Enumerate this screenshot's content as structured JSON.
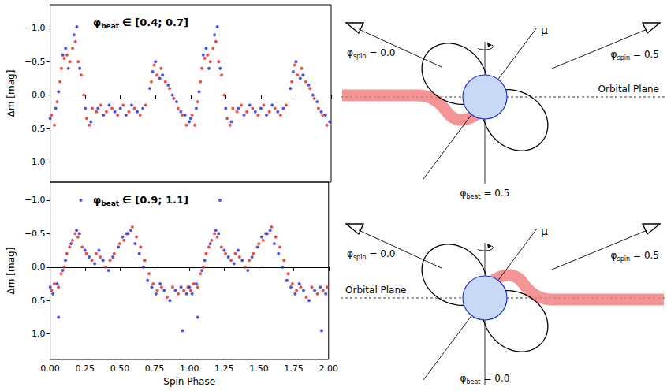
{
  "chart_data": [
    {
      "type": "scatter",
      "annotation": {
        "symbol": "φ",
        "subscript": "beat",
        "text": "∈ [0.4; 0.7]"
      },
      "y_label": "Δm [mag]",
      "xlim": [
        0,
        2
      ],
      "xticks": [
        {
          "value": 0,
          "label": "0.00"
        },
        {
          "value": 0.25,
          "label": "0.25"
        },
        {
          "value": 0.5,
          "label": "0.50"
        },
        {
          "value": 0.75,
          "label": "0.75"
        },
        {
          "value": 1,
          "label": "1.00"
        },
        {
          "value": 1.25,
          "label": "1.25"
        },
        {
          "value": 1.5,
          "label": "1.50"
        },
        {
          "value": 1.75,
          "label": "1.75"
        },
        {
          "value": 2,
          "label": "2.00"
        }
      ],
      "ylim": [
        1.3,
        -1.35
      ],
      "yticks": [
        {
          "value": -1,
          "label": "−1.0"
        },
        {
          "value": -0.5,
          "label": "−0.5"
        },
        {
          "value": 0,
          "label": "0.0"
        },
        {
          "value": 0.5,
          "label": "0.5"
        },
        {
          "value": 1,
          "label": "1.0"
        }
      ],
      "tick_labels": "y",
      "grid": false,
      "series": [
        {
          "color": "#e8231c",
          "marker": "circle",
          "x": [
            0.01,
            0.03,
            0.05,
            0.07,
            0.08,
            0.1,
            0.12,
            0.14,
            0.16,
            0.18,
            0.2,
            0.22,
            0.24,
            0.26,
            0.28,
            0.3,
            0.33,
            0.36,
            0.4,
            0.44,
            0.48,
            0.52,
            0.56,
            0.6,
            0.64,
            0.68,
            0.72,
            0.74,
            0.76,
            0.79,
            0.82,
            0.85,
            0.88,
            0.91,
            0.94,
            0.97,
            1.01,
            1.03,
            1.05,
            1.07,
            1.08,
            1.1,
            1.12,
            1.14,
            1.16,
            1.18,
            1.2,
            1.22,
            1.24,
            1.26,
            1.28,
            1.3,
            1.33,
            1.36,
            1.4,
            1.44,
            1.48,
            1.52,
            1.56,
            1.6,
            1.64,
            1.68,
            1.72,
            1.74,
            1.76,
            1.79,
            1.82,
            1.85,
            1.88,
            1.91,
            1.94,
            1.97
          ],
          "values": [
            0.3,
            0.45,
            0.1,
            -0.2,
            -0.4,
            -0.55,
            -0.6,
            -0.5,
            -0.7,
            -0.8,
            -0.5,
            -0.3,
            0.0,
            0.35,
            0.45,
            0.2,
            0.25,
            0.15,
            0.25,
            0.2,
            0.3,
            0.15,
            0.25,
            0.2,
            0.3,
            0.15,
            -0.2,
            -0.45,
            -0.3,
            -0.4,
            -0.2,
            -0.1,
            0.05,
            0.2,
            0.3,
            0.45,
            0.3,
            0.45,
            0.1,
            -0.2,
            -0.4,
            -0.55,
            -0.6,
            -0.5,
            -0.7,
            -0.8,
            -0.5,
            -0.3,
            0.0,
            0.35,
            0.45,
            0.2,
            0.25,
            0.15,
            0.25,
            0.2,
            0.3,
            0.15,
            0.25,
            0.2,
            0.3,
            0.15,
            -0.2,
            -0.45,
            -0.3,
            -0.4,
            -0.2,
            -0.1,
            0.05,
            0.2,
            0.3,
            0.45
          ]
        },
        {
          "color": "#1f2be0",
          "marker": "circle",
          "x": [
            0.0,
            0.04,
            0.06,
            0.09,
            0.11,
            0.13,
            0.17,
            0.19,
            0.21,
            0.25,
            0.29,
            0.34,
            0.38,
            0.42,
            0.46,
            0.5,
            0.54,
            0.58,
            0.62,
            0.66,
            0.71,
            0.73,
            0.75,
            0.78,
            0.8,
            0.84,
            0.87,
            0.9,
            0.93,
            0.96,
            0.99,
            1.0,
            1.04,
            1.06,
            1.09,
            1.11,
            1.13,
            1.17,
            1.19,
            1.21,
            1.25,
            1.29,
            1.34,
            1.38,
            1.42,
            1.46,
            1.5,
            1.54,
            1.58,
            1.62,
            1.66,
            1.71,
            1.73,
            1.75,
            1.78,
            1.8,
            1.84,
            1.87,
            1.9,
            1.93,
            1.96,
            1.99
          ],
          "values": [
            0.35,
            0.2,
            -0.05,
            -0.6,
            -0.7,
            -0.4,
            -0.9,
            -1.02,
            -0.4,
            0.2,
            0.4,
            0.2,
            0.3,
            0.15,
            0.25,
            0.2,
            0.3,
            0.15,
            0.25,
            0.2,
            -0.1,
            -0.35,
            -0.5,
            -0.25,
            -0.3,
            -0.15,
            0.0,
            0.1,
            0.25,
            0.3,
            0.4,
            0.35,
            0.2,
            -0.05,
            -0.6,
            -0.7,
            -0.4,
            -0.9,
            -1.02,
            -0.4,
            0.2,
            0.4,
            0.2,
            0.3,
            0.15,
            0.25,
            0.2,
            0.3,
            0.15,
            0.25,
            0.2,
            -0.1,
            -0.35,
            -0.5,
            -0.25,
            -0.3,
            -0.15,
            0.0,
            0.1,
            0.25,
            0.3,
            0.4
          ]
        }
      ]
    },
    {
      "type": "scatter",
      "annotation": {
        "symbol": "φ",
        "subscript": "beat",
        "text": "∈ [0.9; 1.1]"
      },
      "x_label": "Spin Phase",
      "y_label": "Δm [mag]",
      "xlim": [
        0,
        2
      ],
      "xticks": [
        {
          "value": 0,
          "label": "0.00"
        },
        {
          "value": 0.25,
          "label": "0.25"
        },
        {
          "value": 0.5,
          "label": "0.50"
        },
        {
          "value": 0.75,
          "label": "0.75"
        },
        {
          "value": 1,
          "label": "1.00"
        },
        {
          "value": 1.25,
          "label": "1.25"
        },
        {
          "value": 1.5,
          "label": "1.50"
        },
        {
          "value": 1.75,
          "label": "1.75"
        },
        {
          "value": 2,
          "label": "2.00"
        }
      ],
      "ylim": [
        1.38,
        -1.27
      ],
      "yticks": [
        {
          "value": -1,
          "label": "−1.0"
        },
        {
          "value": -0.5,
          "label": "−0.5"
        },
        {
          "value": 0,
          "label": "0.0"
        },
        {
          "value": 0.5,
          "label": "0.5"
        },
        {
          "value": 1,
          "label": "1.0"
        }
      ],
      "grid": false,
      "series": [
        {
          "color": "#e8231c",
          "marker": "circle",
          "x": [
            0.01,
            0.03,
            0.06,
            0.08,
            0.1,
            0.12,
            0.14,
            0.16,
            0.18,
            0.2,
            0.23,
            0.26,
            0.3,
            0.33,
            0.36,
            0.4,
            0.43,
            0.46,
            0.5,
            0.53,
            0.56,
            0.59,
            0.62,
            0.65,
            0.68,
            0.71,
            0.74,
            0.77,
            0.8,
            0.84,
            0.88,
            0.92,
            0.96,
            0.99,
            1.01,
            1.03,
            1.06,
            1.08,
            1.1,
            1.12,
            1.14,
            1.16,
            1.18,
            1.2,
            1.23,
            1.26,
            1.3,
            1.33,
            1.36,
            1.4,
            1.43,
            1.46,
            1.5,
            1.53,
            1.56,
            1.59,
            1.62,
            1.65,
            1.68,
            1.71,
            1.74,
            1.77,
            1.8,
            1.84,
            1.88,
            1.92,
            1.96,
            1.99
          ],
          "values": [
            0.35,
            0.25,
            0.3,
            0.1,
            0.0,
            -0.2,
            -0.3,
            -0.4,
            -0.5,
            -0.45,
            -0.3,
            -0.2,
            -0.1,
            -0.2,
            -0.15,
            0.0,
            -0.1,
            -0.2,
            -0.35,
            -0.4,
            -0.5,
            -0.6,
            -0.45,
            -0.3,
            -0.1,
            0.1,
            0.25,
            0.35,
            0.3,
            0.45,
            0.3,
            0.4,
            0.35,
            0.3,
            0.35,
            0.25,
            0.3,
            0.1,
            0.0,
            -0.2,
            -0.3,
            -0.4,
            -0.5,
            -0.45,
            -0.3,
            -0.2,
            -0.1,
            -0.2,
            -0.15,
            0.0,
            -0.1,
            -0.2,
            -0.35,
            -0.4,
            -0.5,
            -0.6,
            -0.45,
            -0.3,
            -0.1,
            0.1,
            0.25,
            0.35,
            0.3,
            0.45,
            0.3,
            0.4,
            0.35,
            0.3
          ]
        },
        {
          "color": "#1f2be0",
          "marker": "circle",
          "x": [
            0.0,
            0.02,
            0.05,
            0.06,
            0.09,
            0.11,
            0.15,
            0.19,
            0.21,
            0.22,
            0.25,
            0.28,
            0.32,
            0.35,
            0.38,
            0.42,
            0.45,
            0.49,
            0.52,
            0.55,
            0.58,
            0.61,
            0.64,
            0.67,
            0.7,
            0.73,
            0.76,
            0.79,
            0.82,
            0.86,
            0.9,
            0.94,
            0.95,
            0.98,
            1.0,
            1.02,
            1.05,
            1.06,
            1.09,
            1.11,
            1.15,
            1.19,
            1.21,
            1.22,
            1.25,
            1.28,
            1.32,
            1.35,
            1.38,
            1.42,
            1.45,
            1.49,
            1.52,
            1.55,
            1.58,
            1.61,
            1.64,
            1.67,
            1.7,
            1.73,
            1.76,
            1.79,
            1.82,
            1.86,
            1.9,
            1.94,
            1.95,
            1.98
          ],
          "values": [
            0.3,
            0.4,
            0.25,
            0.75,
            0.05,
            -0.1,
            -0.35,
            -0.55,
            -0.5,
            -1.0,
            -0.25,
            -0.15,
            -0.05,
            -0.25,
            -0.1,
            0.05,
            -0.15,
            -0.3,
            -0.45,
            -0.5,
            -0.55,
            -0.35,
            -0.2,
            0.0,
            0.2,
            0.3,
            0.4,
            0.25,
            0.35,
            0.5,
            0.35,
            0.3,
            0.95,
            0.4,
            0.3,
            0.4,
            0.25,
            0.75,
            0.05,
            -0.1,
            -0.35,
            -0.55,
            -0.5,
            -1.0,
            -0.25,
            -0.15,
            -0.05,
            -0.25,
            -0.1,
            0.05,
            -0.15,
            -0.3,
            -0.45,
            -0.5,
            -0.55,
            -0.35,
            -0.2,
            0.0,
            0.2,
            0.3,
            0.4,
            0.25,
            0.35,
            0.5,
            0.35,
            0.3,
            0.95,
            0.4
          ]
        }
      ]
    }
  ],
  "diagrams": [
    {
      "observer_left": {
        "symbol": "φ",
        "subscript": "spin",
        "text": "= 0.0"
      },
      "observer_right": {
        "symbol": "φ",
        "subscript": "spin",
        "text": "= 0.5"
      },
      "axis_label": "μ",
      "plane_label": "Orbital Plane",
      "beat_label": {
        "symbol": "φ",
        "subscript": "beat",
        "text": "= 0.5"
      }
    },
    {
      "observer_left": {
        "symbol": "φ",
        "subscript": "spin",
        "text": "= 0.0"
      },
      "observer_right": {
        "symbol": "φ",
        "subscript": "spin",
        "text": "= 0.5"
      },
      "axis_label": "μ",
      "plane_label": "Orbital Plane",
      "beat_label": {
        "symbol": "φ",
        "subscript": "beat",
        "text": "= 0.0"
      }
    }
  ]
}
